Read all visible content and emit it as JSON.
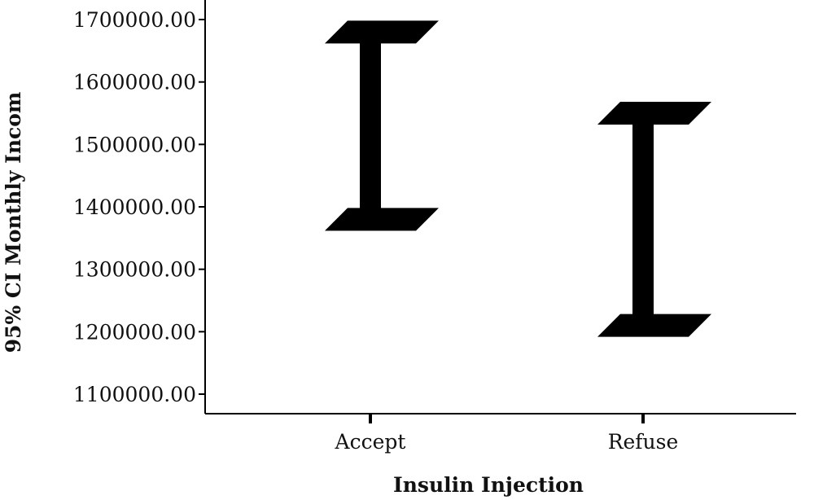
{
  "chart_data": {
    "type": "errorbar",
    "xlabel": "Insulin Injection",
    "ylabel": "95% CI Monthly Incom",
    "categories": [
      "Accept",
      "Refuse"
    ],
    "intervals": [
      {
        "category": "Accept",
        "lower": 1380000,
        "upper": 1680000
      },
      {
        "category": "Refuse",
        "lower": 1210000,
        "upper": 1550000
      }
    ],
    "y_ticks": [
      "1100000.00",
      "1200000.00",
      "1300000.00",
      "1400000.00",
      "1500000.00",
      "1600000.00",
      "1700000.00"
    ],
    "ylim": [
      1070000,
      1735000
    ],
    "grid": false,
    "color": "#000000"
  }
}
